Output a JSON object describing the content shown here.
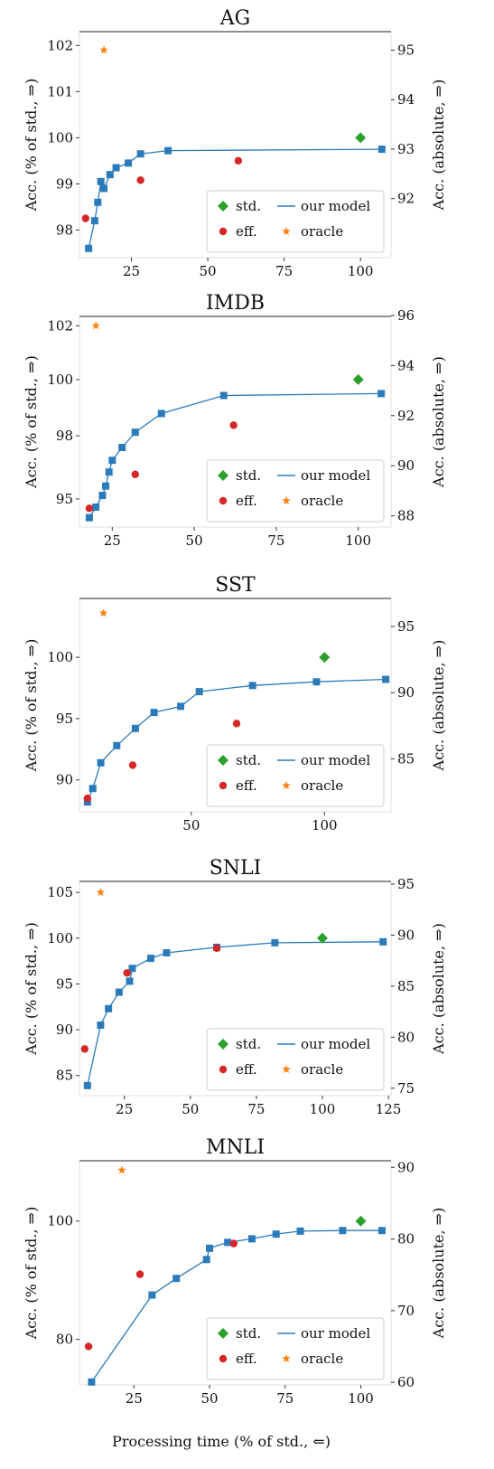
{
  "xlabel": "Processing time (% of std., ⇐)",
  "colors": {
    "model": "#2b7bba",
    "std": "#2ca02c",
    "eff": "#d62728",
    "oracle": "#ff7f0e"
  },
  "legend": {
    "std": "std.",
    "model": "our model",
    "eff": "eff.",
    "oracle": "oracle"
  },
  "chart_data": [
    {
      "type": "line",
      "title": "AG",
      "ylabel": "Acc. (% of std., ⇒)",
      "y2label": "Acc. (absolute, ⇒)",
      "xlim": [
        8,
        110
      ],
      "ylim": [
        97.4,
        102.3
      ],
      "xticks": [
        25,
        50,
        75,
        100
      ],
      "yticks": [
        98,
        99,
        100,
        101,
        102
      ],
      "y2ticks": [
        92,
        93,
        94,
        95
      ],
      "y2_ratio": 93.23,
      "legend_position": "lower right",
      "series": [
        {
          "name": "our model",
          "kind": "model",
          "x": [
            11,
            13,
            14,
            15,
            16,
            18,
            20,
            24,
            28,
            37,
            107
          ],
          "y": [
            97.6,
            98.2,
            98.6,
            99.05,
            98.9,
            99.2,
            99.35,
            99.45,
            99.65,
            99.72,
            99.75
          ]
        },
        {
          "name": "std.",
          "kind": "std",
          "x": [
            100
          ],
          "y": [
            100
          ]
        },
        {
          "name": "eff.",
          "kind": "eff",
          "x": [
            10,
            28,
            60
          ],
          "y": [
            98.25,
            99.08,
            99.5
          ]
        },
        {
          "name": "oracle",
          "kind": "oracle",
          "x": [
            16
          ],
          "y": [
            101.9
          ]
        }
      ]
    },
    {
      "type": "line",
      "title": "IMDB",
      "ylabel": "Acc. (% of std., ⇒)",
      "y2label": "Acc. (absolute, ⇒)",
      "xlim": [
        15,
        110
      ],
      "ylim": [
        93.7,
        102.7
      ],
      "xticks": [
        25,
        50,
        75,
        100
      ],
      "yticks": [
        95,
        98,
        100,
        102
      ],
      "ytick_positions": [
        94.9,
        97.6,
        100,
        102.3
      ],
      "y2ticks": [
        88,
        90,
        92,
        94,
        96
      ],
      "y2_ratio": 93.44,
      "legend_position": "lower right",
      "series": [
        {
          "name": "our model",
          "kind": "model",
          "x": [
            18,
            20,
            22,
            23,
            24,
            25,
            28,
            32,
            40,
            59,
            107
          ],
          "y": [
            94.1,
            94.55,
            95.05,
            95.45,
            96.05,
            96.55,
            97.1,
            97.75,
            98.55,
            99.32,
            99.4
          ]
        },
        {
          "name": "std.",
          "kind": "std",
          "x": [
            100
          ],
          "y": [
            100
          ]
        },
        {
          "name": "eff.",
          "kind": "eff",
          "x": [
            18,
            32,
            62
          ],
          "y": [
            94.5,
            95.95,
            98.05
          ]
        },
        {
          "name": "oracle",
          "kind": "oracle",
          "x": [
            20
          ],
          "y": [
            102.3
          ]
        }
      ]
    },
    {
      "type": "line",
      "title": "SST",
      "ylabel": "Acc. (% of std., ⇒)",
      "y2label": "Acc. (absolute, ⇒)",
      "xlim": [
        8,
        125
      ],
      "ylim": [
        87.4,
        104.8
      ],
      "xticks": [
        50,
        100
      ],
      "yticks": [
        90,
        95,
        100
      ],
      "y2ticks": [
        85,
        90,
        95
      ],
      "y2_ratio": 92.67,
      "legend_position": "lower right",
      "series": [
        {
          "name": "our model",
          "kind": "model",
          "x": [
            11,
            13,
            16,
            22,
            29,
            36,
            46,
            53,
            73,
            97,
            123
          ],
          "y": [
            88.2,
            89.3,
            91.4,
            92.8,
            94.2,
            95.5,
            96.0,
            97.2,
            97.7,
            98.0,
            98.2
          ]
        },
        {
          "name": "std.",
          "kind": "std",
          "x": [
            100
          ],
          "y": [
            100
          ]
        },
        {
          "name": "eff.",
          "kind": "eff",
          "x": [
            11,
            28,
            67
          ],
          "y": [
            88.5,
            91.2,
            94.6
          ]
        },
        {
          "name": "oracle",
          "kind": "oracle",
          "x": [
            17
          ],
          "y": [
            103.6
          ]
        }
      ]
    },
    {
      "type": "line",
      "title": "SNLI",
      "ylabel": "Acc. (% of std., ⇒)",
      "y2label": "Acc. (absolute, ⇒)",
      "xlim": [
        8,
        126
      ],
      "ylim": [
        82.8,
        106.2
      ],
      "xticks": [
        25,
        50,
        75,
        100,
        125
      ],
      "yticks": [
        85,
        90,
        95,
        100,
        105
      ],
      "y2ticks": [
        75,
        80,
        85,
        90,
        95
      ],
      "y2_ratio": 89.7,
      "legend_position": "lower right",
      "series": [
        {
          "name": "our model",
          "kind": "model",
          "x": [
            11,
            16,
            19,
            23,
            27,
            28,
            35,
            41,
            60,
            82,
            123
          ],
          "y": [
            83.9,
            90.5,
            92.3,
            94.1,
            95.3,
            96.7,
            97.8,
            98.4,
            99.0,
            99.5,
            99.6
          ]
        },
        {
          "name": "std.",
          "kind": "std",
          "x": [
            100
          ],
          "y": [
            100
          ]
        },
        {
          "name": "eff.",
          "kind": "eff",
          "x": [
            10,
            26,
            60
          ],
          "y": [
            87.9,
            96.2,
            98.9
          ]
        },
        {
          "name": "oracle",
          "kind": "oracle",
          "x": [
            16
          ],
          "y": [
            105.0
          ]
        }
      ]
    },
    {
      "type": "line",
      "title": "MNLI",
      "ylabel": "Acc. (% of std., ⇒)",
      "y2label": "Acc. (absolute, ⇒)",
      "xlim": [
        7,
        110
      ],
      "ylim": [
        72.3,
        110.2
      ],
      "xticks": [
        25,
        50,
        75,
        100
      ],
      "yticks": [
        80,
        100
      ],
      "y2ticks": [
        60,
        70,
        80,
        90
      ],
      "y2_ratio": 82.5,
      "legend_position": "lower right",
      "series": [
        {
          "name": "our model",
          "kind": "model",
          "x": [
            11,
            31,
            39,
            49,
            50,
            56,
            64,
            72,
            80,
            94,
            107
          ],
          "y": [
            72.8,
            87.5,
            90.3,
            93.5,
            95.4,
            96.4,
            97.0,
            97.8,
            98.3,
            98.4,
            98.4
          ]
        },
        {
          "name": "std.",
          "kind": "std",
          "x": [
            100
          ],
          "y": [
            100
          ]
        },
        {
          "name": "eff.",
          "kind": "eff",
          "x": [
            10,
            27,
            58
          ],
          "y": [
            78.8,
            91.0,
            96.2
          ]
        },
        {
          "name": "oracle",
          "kind": "oracle",
          "x": [
            21
          ],
          "y": [
            108.6
          ]
        }
      ]
    }
  ]
}
